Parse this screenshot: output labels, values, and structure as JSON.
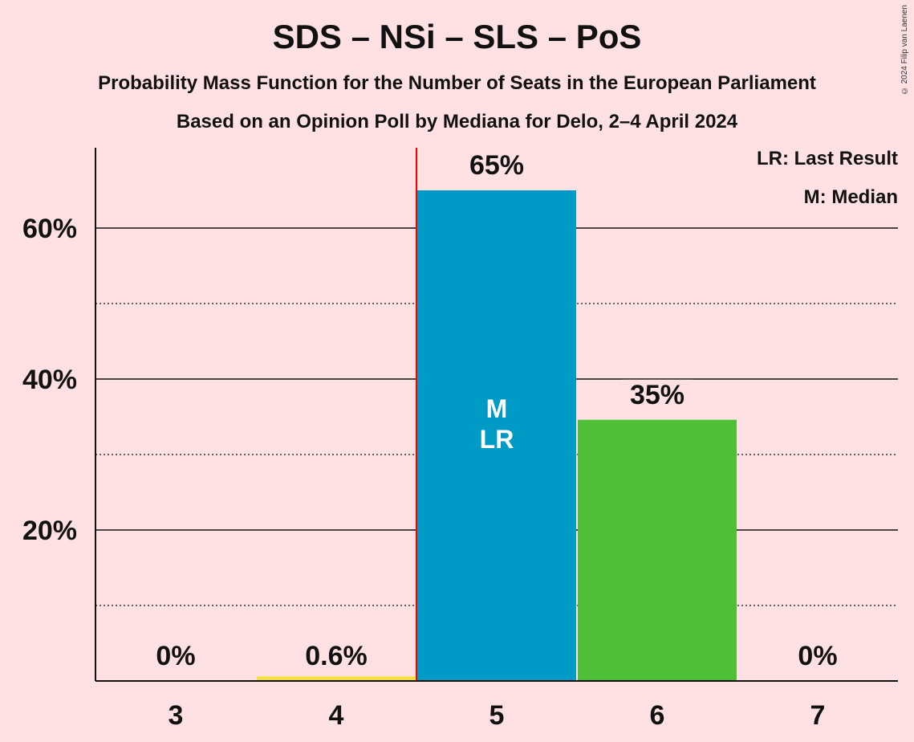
{
  "title": "SDS – NSi – SLS – PoS",
  "subtitle": "Probability Mass Function for the Number of Seats in the European Parliament",
  "subtitle2": "Based on an Opinion Poll by Mediana for Delo, 2–4 April 2024",
  "copyright": "© 2024 Filip van Laenen",
  "legend": {
    "last_result": "LR: Last Result",
    "median": "M: Median"
  },
  "colors": {
    "background": "#FFE1E3",
    "last_result_line": "#FF0000"
  },
  "chart_data": {
    "type": "bar",
    "categories": [
      "3",
      "4",
      "5",
      "6",
      "7"
    ],
    "values": [
      0,
      0.6,
      65,
      35,
      0
    ],
    "plot_values": [
      0,
      0.6,
      65,
      34.6,
      0
    ],
    "data_labels": [
      "0%",
      "0.6%",
      "65%",
      "35%",
      "0%"
    ],
    "bar_colors": [
      "#F6E03C",
      "#F6E03C",
      "#009AC7",
      "#4FBF37",
      "#F6E03C"
    ],
    "ylim": [
      0,
      70
    ],
    "yticks_major": [
      20,
      40,
      60
    ],
    "ytick_labels": [
      "20%",
      "40%",
      "60%"
    ],
    "yticks_minor": [
      10,
      30,
      50
    ],
    "median_category": "5",
    "last_result_category": "5",
    "bar_inner_labels": [
      "M",
      "LR"
    ],
    "grid": true,
    "legend_position": "top-right"
  }
}
